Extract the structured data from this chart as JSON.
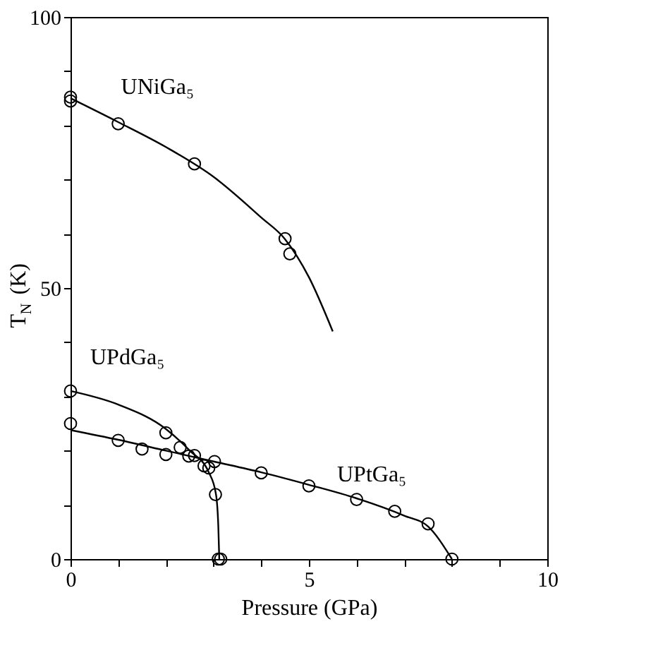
{
  "chart_data": {
    "type": "scatter",
    "xlabel": "Pressure (GPa)",
    "ylabel": "T$_{N}$ (K)",
    "xlim": [
      0,
      10
    ],
    "ylim": [
      0,
      100
    ],
    "xticks": [
      0,
      {
        "value": 1,
        "label": null
      },
      {
        "value": 2,
        "label": null
      },
      {
        "value": 3,
        "label": null
      },
      {
        "value": 4,
        "label": null
      },
      5,
      {
        "value": 6,
        "label": null
      },
      {
        "value": 7,
        "label": null
      },
      {
        "value": 8,
        "label": null
      },
      {
        "value": 9,
        "label": null
      },
      10
    ],
    "yticks": [
      0,
      {
        "value": 10,
        "label": null
      },
      {
        "value": 20,
        "label": null
      },
      {
        "value": 30,
        "label": null
      },
      {
        "value": 40,
        "label": null
      },
      50,
      {
        "value": 60,
        "label": null
      },
      {
        "value": 70,
        "label": null
      },
      {
        "value": 80,
        "label": null
      },
      {
        "value": 90,
        "label": null
      },
      100
    ],
    "grid": false,
    "marker": "circle",
    "series": [
      {
        "name": "UNiGa₅",
        "color": "#000000",
        "x": [
          0,
          0,
          1.0,
          2.6,
          4.5,
          4.6
        ],
        "values": [
          85.2,
          84.5,
          80.3,
          72.9,
          59.1,
          56.3
        ]
      },
      {
        "name": "UPdGa₅",
        "color": "#000000",
        "x": [
          0,
          2.0,
          2.3,
          2.8,
          2.9,
          3.04,
          3.1,
          3.15
        ],
        "values": [
          31.0,
          23.3,
          20.6,
          17.2,
          16.8,
          11.9,
          0,
          0
        ]
      },
      {
        "name": "UPtGa₅",
        "color": "#000000",
        "x": [
          0,
          1.0,
          1.5,
          2.0,
          2.48,
          2.6,
          3.02,
          4.0,
          5.0,
          6.0,
          6.8,
          7.5,
          8.0
        ],
        "values": [
          25.0,
          21.9,
          20.3,
          19.3,
          19.0,
          19.1,
          18.0,
          15.9,
          13.5,
          11.0,
          8.8,
          6.5,
          0
        ]
      },
      {
        "type": "line",
        "color": "#000000",
        "marker": "none",
        "line_style": "solid",
        "x": [
          0,
          1,
          2,
          3,
          4,
          4.5,
          5,
          5.5
        ],
        "values": [
          85,
          80.6,
          76,
          70.5,
          63,
          59,
          52,
          42
        ]
      },
      {
        "type": "line",
        "color": "#000000",
        "marker": "none",
        "line_style": "solid",
        "x": [
          0,
          1,
          2,
          2.5,
          2.9,
          3.05,
          3.1,
          3.12
        ],
        "values": [
          31,
          28.5,
          24,
          20,
          16,
          12,
          6,
          0
        ]
      },
      {
        "type": "line",
        "color": "#000000",
        "marker": "none",
        "line_style": "solid",
        "x": [
          0,
          1,
          2,
          3,
          4,
          5,
          6,
          7,
          7.5,
          8
        ],
        "values": [
          23.8,
          22,
          20,
          18,
          16,
          13.7,
          11.2,
          8,
          6,
          0
        ]
      }
    ]
  }
}
